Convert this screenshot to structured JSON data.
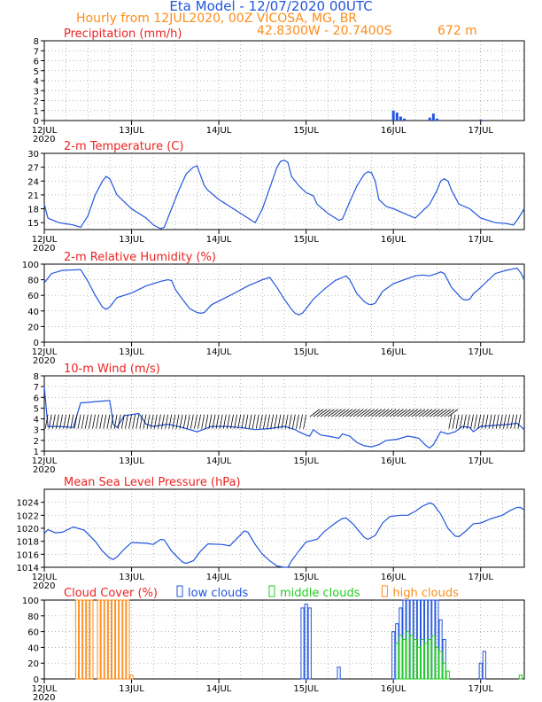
{
  "header": {
    "title": "Eta Model - 12/07/2020 00UTC",
    "subtitle": "Hourly from 12JUL2020, 00Z  VICOSA, MG, BR",
    "coords": "42.8300W - 20.7400S",
    "elevation": "672  m"
  },
  "time_axis": {
    "hours": 132,
    "ticks": [
      {
        "label": "12JUL",
        "hour": 0
      },
      {
        "label": "13JUL",
        "hour": 24
      },
      {
        "label": "14JUL",
        "hour": 48
      },
      {
        "label": "15JUL",
        "hour": 72
      },
      {
        "label": "16JUL",
        "hour": 96
      },
      {
        "label": "17JUL",
        "hour": 120
      }
    ],
    "year_label": "2020"
  },
  "colors": {
    "line": "#2255dd",
    "title": "#ee2222",
    "grid": "#999999",
    "orange": "#ff8c1a",
    "green": "#22cc22",
    "black": "#000000"
  },
  "chart_data": [
    {
      "id": "precip",
      "type": "bar",
      "title": "Precipitation (mm/h)",
      "ylim": [
        0,
        8
      ],
      "yticks": [
        0,
        1,
        2,
        3,
        4,
        5,
        6,
        7,
        8
      ],
      "x": [
        96,
        97,
        98,
        99,
        106,
        107,
        108,
        120
      ],
      "values": [
        1.0,
        0.8,
        0.4,
        0.2,
        0.3,
        0.7,
        0.2,
        0.1
      ]
    },
    {
      "id": "temp",
      "type": "line",
      "title": "2-m Temperature (C)",
      "ylim": [
        13.5,
        30
      ],
      "yticks": [
        15,
        18,
        21,
        24,
        27,
        30
      ],
      "points": [
        [
          0,
          19
        ],
        [
          1,
          16
        ],
        [
          4,
          15
        ],
        [
          8,
          14.5
        ],
        [
          10,
          14
        ],
        [
          12,
          16.5
        ],
        [
          14,
          21
        ],
        [
          16,
          24
        ],
        [
          17,
          25
        ],
        [
          18,
          24.5
        ],
        [
          20,
          21
        ],
        [
          22,
          19.5
        ],
        [
          24,
          18
        ],
        [
          28,
          16
        ],
        [
          30,
          14.5
        ],
        [
          32,
          13.7
        ],
        [
          33,
          14
        ],
        [
          35,
          18
        ],
        [
          37,
          22
        ],
        [
          39,
          25.5
        ],
        [
          41,
          27
        ],
        [
          42,
          27.3
        ],
        [
          44,
          23
        ],
        [
          45,
          22
        ],
        [
          48,
          20
        ],
        [
          52,
          18
        ],
        [
          56,
          16
        ],
        [
          58,
          15
        ],
        [
          60,
          18
        ],
        [
          62,
          22.5
        ],
        [
          64,
          27
        ],
        [
          65,
          28.3
        ],
        [
          66,
          28.5
        ],
        [
          67,
          28
        ],
        [
          68,
          25
        ],
        [
          70,
          23
        ],
        [
          72,
          21.5
        ],
        [
          74,
          20.8
        ],
        [
          75,
          19
        ],
        [
          78,
          17
        ],
        [
          81,
          15.5
        ],
        [
          82,
          15.8
        ],
        [
          84,
          19.5
        ],
        [
          86,
          23
        ],
        [
          88,
          25.5
        ],
        [
          89,
          26
        ],
        [
          90,
          25.8
        ],
        [
          91,
          24
        ],
        [
          92,
          20
        ],
        [
          94,
          18.5
        ],
        [
          96,
          18
        ],
        [
          99,
          17
        ],
        [
          102,
          16
        ],
        [
          104,
          17.5
        ],
        [
          106,
          19
        ],
        [
          108,
          22
        ],
        [
          109,
          24
        ],
        [
          110,
          24.5
        ],
        [
          111,
          24
        ],
        [
          112,
          22
        ],
        [
          114,
          19
        ],
        [
          117,
          18
        ],
        [
          120,
          16
        ],
        [
          124,
          15
        ],
        [
          127,
          14.8
        ],
        [
          129,
          14.5
        ],
        [
          130,
          15.5
        ],
        [
          132,
          18
        ]
      ]
    },
    {
      "id": "rh",
      "type": "line",
      "title": "2-m Relative Humidity (%)",
      "ylim": [
        0,
        100
      ],
      "yticks": [
        0,
        20,
        40,
        60,
        80,
        100
      ],
      "points": [
        [
          0,
          76
        ],
        [
          2,
          88
        ],
        [
          5,
          92
        ],
        [
          10,
          93
        ],
        [
          12,
          78
        ],
        [
          14,
          60
        ],
        [
          16,
          45
        ],
        [
          17,
          42
        ],
        [
          18,
          45
        ],
        [
          20,
          57
        ],
        [
          24,
          63
        ],
        [
          28,
          72
        ],
        [
          32,
          78
        ],
        [
          34,
          80
        ],
        [
          35,
          79
        ],
        [
          36,
          68
        ],
        [
          38,
          55
        ],
        [
          40,
          43
        ],
        [
          42,
          38
        ],
        [
          43,
          37
        ],
        [
          44,
          38
        ],
        [
          46,
          48
        ],
        [
          52,
          62
        ],
        [
          56,
          72
        ],
        [
          60,
          80
        ],
        [
          62,
          83
        ],
        [
          64,
          70
        ],
        [
          66,
          55
        ],
        [
          68,
          42
        ],
        [
          69,
          37
        ],
        [
          70,
          35
        ],
        [
          71,
          37
        ],
        [
          72,
          43
        ],
        [
          74,
          55
        ],
        [
          77,
          68
        ],
        [
          80,
          79
        ],
        [
          82,
          83
        ],
        [
          83,
          85
        ],
        [
          84,
          80
        ],
        [
          86,
          62
        ],
        [
          88,
          52
        ],
        [
          89,
          49
        ],
        [
          90,
          48
        ],
        [
          91,
          50
        ],
        [
          93,
          65
        ],
        [
          96,
          75
        ],
        [
          99,
          80
        ],
        [
          102,
          85
        ],
        [
          104,
          86
        ],
        [
          106,
          85
        ],
        [
          108,
          88
        ],
        [
          109,
          90
        ],
        [
          110,
          88
        ],
        [
          112,
          70
        ],
        [
          114,
          60
        ],
        [
          115,
          55
        ],
        [
          116,
          54
        ],
        [
          117,
          55
        ],
        [
          118,
          62
        ],
        [
          120,
          70
        ],
        [
          122,
          79
        ],
        [
          124,
          88
        ],
        [
          127,
          92
        ],
        [
          129,
          94
        ],
        [
          130,
          95
        ],
        [
          131,
          89
        ],
        [
          132,
          80
        ]
      ]
    },
    {
      "id": "wind",
      "type": "line",
      "title": "10-m Wind (m/s)",
      "ylim": [
        1,
        8
      ],
      "yticks": [
        1,
        2,
        3,
        4,
        5,
        6,
        7,
        8
      ],
      "points": [
        [
          0,
          7
        ],
        [
          1,
          3.3
        ],
        [
          4,
          3.3
        ],
        [
          8,
          3.2
        ],
        [
          10,
          5.5
        ],
        [
          11,
          5.5
        ],
        [
          14,
          5.6
        ],
        [
          18,
          5.7
        ],
        [
          19,
          3.5
        ],
        [
          20,
          3.2
        ],
        [
          22,
          4.3
        ],
        [
          26,
          4.5
        ],
        [
          28,
          3.5
        ],
        [
          30,
          3.3
        ],
        [
          34,
          3.5
        ],
        [
          38,
          3.2
        ],
        [
          42,
          2.8
        ],
        [
          46,
          3.3
        ],
        [
          50,
          3.3
        ],
        [
          54,
          3.2
        ],
        [
          58,
          3
        ],
        [
          62,
          3.1
        ],
        [
          66,
          3.3
        ],
        [
          69,
          3
        ],
        [
          70,
          2.8
        ],
        [
          72,
          2.5
        ],
        [
          73,
          2.4
        ],
        [
          74,
          3
        ],
        [
          76,
          2.5
        ],
        [
          78,
          2.4
        ],
        [
          81,
          2.2
        ],
        [
          82,
          2.6
        ],
        [
          84,
          2.4
        ],
        [
          86,
          1.8
        ],
        [
          88,
          1.5
        ],
        [
          90,
          1.4
        ],
        [
          92,
          1.6
        ],
        [
          94,
          2.0
        ],
        [
          97,
          2.1
        ],
        [
          100,
          2.4
        ],
        [
          103,
          2.2
        ],
        [
          105,
          1.5
        ],
        [
          106,
          1.3
        ],
        [
          107,
          1.6
        ],
        [
          109,
          2.8
        ],
        [
          111,
          2.6
        ],
        [
          113,
          2.8
        ],
        [
          115,
          3.3
        ],
        [
          117,
          3.2
        ],
        [
          118,
          2.8
        ],
        [
          120,
          3.3
        ],
        [
          124,
          3.4
        ],
        [
          128,
          3.5
        ],
        [
          130,
          3.6
        ],
        [
          132,
          3
        ]
      ]
    },
    {
      "id": "mslp",
      "type": "line",
      "title": "Mean Sea Level Pressure (hPa)",
      "ylim": [
        1014,
        1026
      ],
      "yticks": [
        1014,
        1016,
        1018,
        1020,
        1022,
        1024
      ],
      "points": [
        [
          0,
          1019.2
        ],
        [
          1,
          1019.8
        ],
        [
          3,
          1019.3
        ],
        [
          5,
          1019.4
        ],
        [
          8,
          1020.2
        ],
        [
          11,
          1019.7
        ],
        [
          14,
          1018
        ],
        [
          16,
          1016.5
        ],
        [
          18,
          1015.4
        ],
        [
          19,
          1015.2
        ],
        [
          20,
          1015.6
        ],
        [
          22,
          1016.8
        ],
        [
          24,
          1017.8
        ],
        [
          28,
          1017.7
        ],
        [
          30,
          1017.5
        ],
        [
          32,
          1018.3
        ],
        [
          33,
          1018.2
        ],
        [
          35,
          1016.5
        ],
        [
          38,
          1014.8
        ],
        [
          39,
          1014.6
        ],
        [
          41,
          1015
        ],
        [
          43,
          1016.5
        ],
        [
          45,
          1017.6
        ],
        [
          49,
          1017.5
        ],
        [
          51,
          1017.3
        ],
        [
          54,
          1019
        ],
        [
          55,
          1019.6
        ],
        [
          56,
          1019.4
        ],
        [
          58,
          1017.5
        ],
        [
          60,
          1016
        ],
        [
          62,
          1015
        ],
        [
          64,
          1014.2
        ],
        [
          66,
          1014
        ],
        [
          67,
          1014
        ],
        [
          68,
          1015
        ],
        [
          70,
          1016.5
        ],
        [
          72,
          1017.9
        ],
        [
          75,
          1018.3
        ],
        [
          77,
          1019.5
        ],
        [
          80,
          1020.8
        ],
        [
          82,
          1021.5
        ],
        [
          83,
          1021.6
        ],
        [
          85,
          1020.6
        ],
        [
          88,
          1018.6
        ],
        [
          89,
          1018.3
        ],
        [
          91,
          1018.9
        ],
        [
          93,
          1020.8
        ],
        [
          95,
          1021.8
        ],
        [
          98,
          1022
        ],
        [
          100,
          1022
        ],
        [
          102,
          1022.6
        ],
        [
          104,
          1023.4
        ],
        [
          106,
          1023.9
        ],
        [
          107,
          1023.7
        ],
        [
          109,
          1022.2
        ],
        [
          111,
          1020
        ],
        [
          113,
          1018.8
        ],
        [
          114,
          1018.7
        ],
        [
          116,
          1019.6
        ],
        [
          118,
          1020.7
        ],
        [
          120,
          1020.8
        ],
        [
          123,
          1021.5
        ],
        [
          126,
          1022
        ],
        [
          128,
          1022.7
        ],
        [
          130,
          1023.2
        ],
        [
          131,
          1023.2
        ],
        [
          132,
          1022.8
        ]
      ]
    },
    {
      "id": "cloud",
      "type": "bar",
      "title": "Cloud Cover (%)",
      "ylim": [
        0,
        100
      ],
      "yticks": [
        0,
        20,
        40,
        60,
        80,
        100
      ],
      "legend": [
        {
          "label": "low clouds",
          "color": "#2255dd"
        },
        {
          "label": "middle clouds",
          "color": "#22cc22"
        },
        {
          "label": "high clouds",
          "color": "#ff8c1a"
        }
      ],
      "series": [
        {
          "name": "high clouds",
          "x": [
            9,
            10,
            11,
            12,
            13,
            14,
            15,
            16,
            17,
            18,
            19,
            20,
            21,
            22,
            23,
            24
          ],
          "values": [
            100,
            100,
            100,
            100,
            100,
            0,
            100,
            100,
            100,
            100,
            100,
            100,
            100,
            100,
            100,
            5
          ]
        },
        {
          "name": "low clouds",
          "x": [
            71,
            72,
            73,
            81,
            96,
            97,
            98,
            99,
            100,
            101,
            102,
            103,
            104,
            105,
            106,
            107,
            108,
            109,
            110,
            120,
            121
          ],
          "values": [
            90,
            95,
            90,
            15,
            60,
            70,
            90,
            100,
            100,
            100,
            100,
            100,
            100,
            100,
            100,
            100,
            100,
            75,
            50,
            20,
            35
          ]
        },
        {
          "name": "middle clouds",
          "x": [
            97,
            98,
            99,
            100,
            101,
            102,
            103,
            104,
            105,
            106,
            107,
            108,
            109,
            110,
            111,
            131
          ],
          "values": [
            45,
            55,
            50,
            60,
            55,
            50,
            40,
            50,
            45,
            50,
            55,
            40,
            35,
            20,
            10,
            5
          ]
        }
      ]
    }
  ]
}
